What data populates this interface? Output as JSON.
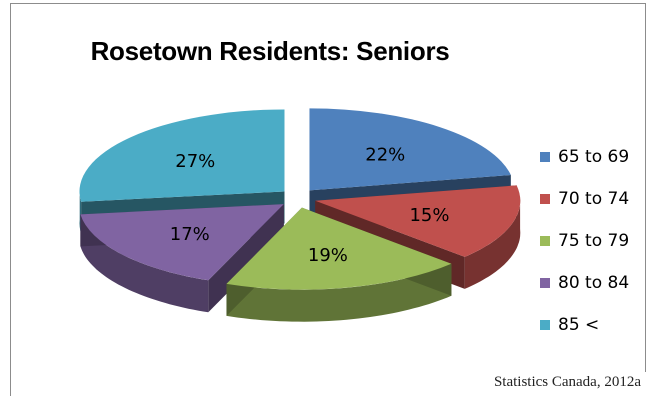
{
  "chart_data": {
    "type": "pie",
    "style": "3d-exploded",
    "title": "Rosetown Residents: Seniors",
    "categories": [
      "65 to 69",
      "70 to 74",
      "75 to 79",
      "80 to 84",
      "85 <"
    ],
    "values": [
      22,
      15,
      19,
      17,
      27
    ],
    "labels": [
      "22%",
      "15%",
      "19%",
      "17%",
      "27%"
    ],
    "colors": [
      "#4f81bd",
      "#c0504d",
      "#9bbb59",
      "#8064a2",
      "#4bacc6"
    ],
    "legend_position": "right"
  },
  "source_note": "Statistics Canada, 2012a"
}
